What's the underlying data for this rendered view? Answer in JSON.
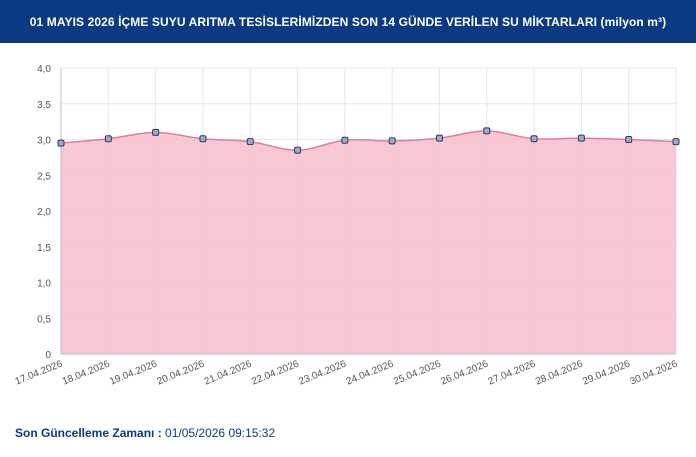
{
  "header": {
    "title": "01 MAYIS 2026 İÇME SUYU ARITMA TESİSLERİMİZDEN SON 14 GÜNDE VERİLEN SU MİKTARLARI (milyon m³)"
  },
  "colors": {
    "header_bg": "#0b3a82",
    "area_fill": "#f7c1cf",
    "line": "#e07e98",
    "marker_fill": "#9aa8e0",
    "marker_stroke": "#3a3a3a",
    "grid": "#e6e6e6",
    "footer_text": "#0b3a82"
  },
  "chart_data": {
    "type": "area",
    "title": "01 MAYIS 2026 İÇME SUYU ARITMA TESİSLERİMİZDEN SON 14 GÜNDE VERİLEN SU MİKTARLARI (milyon m³)",
    "xlabel": "",
    "ylabel": "",
    "ylim": [
      0,
      4
    ],
    "yticks": [
      "0",
      "0,5",
      "1,0",
      "1,5",
      "2,0",
      "2,5",
      "3,0",
      "3,5",
      "4,0"
    ],
    "grid": true,
    "categories": [
      "17.04.2026",
      "18.04.2026",
      "19.04.2026",
      "20.04.2026",
      "21.04.2026",
      "22.04.2026",
      "23.04.2026",
      "24.04.2026",
      "25.04.2026",
      "26.04.2026",
      "27.04.2026",
      "28.04.2026",
      "29.04.2026",
      "30.04.2026"
    ],
    "series": [
      {
        "values": [
          2.95,
          3.01,
          3.1,
          3.01,
          2.97,
          2.85,
          2.99,
          2.98,
          3.02,
          3.12,
          3.01,
          3.02,
          3.0,
          2.97
        ]
      }
    ]
  },
  "footer": {
    "label": "Son Güncelleme Zamanı :",
    "value": "01/05/2026 09:15:32"
  }
}
